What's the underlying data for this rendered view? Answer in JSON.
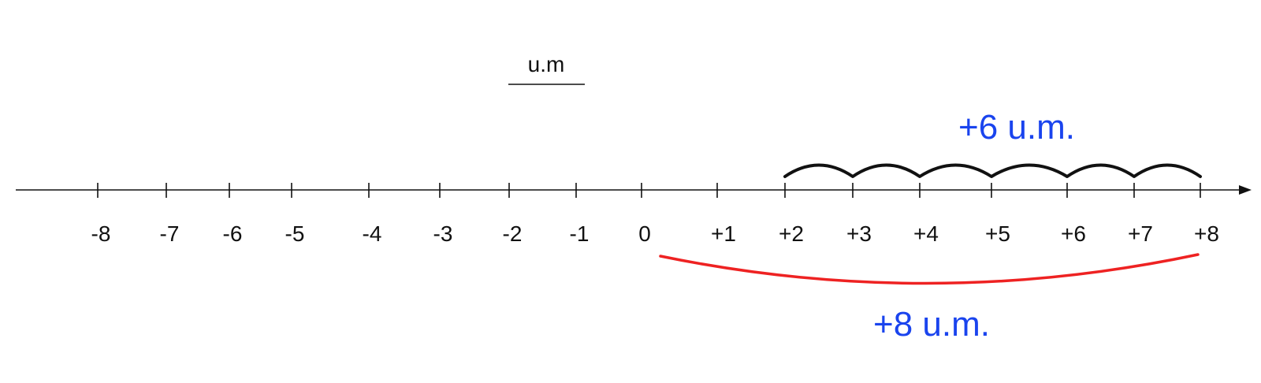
{
  "diagram": {
    "unit_label": "u.m",
    "ticks": [
      {
        "value": -8,
        "label": "-8"
      },
      {
        "value": -7,
        "label": "-7"
      },
      {
        "value": -6,
        "label": "-6"
      },
      {
        "value": -5,
        "label": "-5"
      },
      {
        "value": -4,
        "label": "-4"
      },
      {
        "value": -3,
        "label": "-3"
      },
      {
        "value": -2,
        "label": "-2"
      },
      {
        "value": -1,
        "label": "-1"
      },
      {
        "value": 0,
        "label": "0"
      },
      {
        "value": 1,
        "label": "+1"
      },
      {
        "value": 2,
        "label": "+2"
      },
      {
        "value": 3,
        "label": "+3"
      },
      {
        "value": 4,
        "label": "+4"
      },
      {
        "value": 5,
        "label": "+5"
      },
      {
        "value": 6,
        "label": "+6"
      },
      {
        "value": 7,
        "label": "+7"
      },
      {
        "value": 8,
        "label": "+8"
      }
    ],
    "hops": {
      "from": 2,
      "to": 8,
      "label": "+6 u.m."
    },
    "span": {
      "from": 0,
      "to": 8,
      "label": "+8 u.m."
    },
    "colors": {
      "axis": "#111111",
      "hops": "#111111",
      "span": "#ee2222",
      "annotation": "#1a44ee"
    }
  }
}
